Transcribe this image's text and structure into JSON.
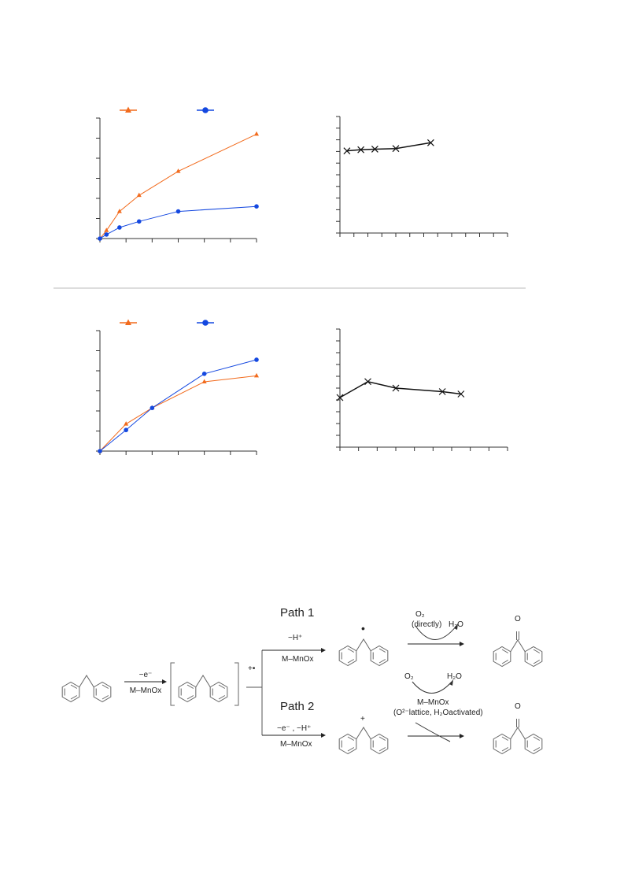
{
  "colors": {
    "orange": "#F26B1D",
    "blue": "#1448E0",
    "black": "#111111",
    "divider": "#bbbbbb"
  },
  "chart_data": [
    {
      "type": "line",
      "panel": "top-left",
      "x": [
        0,
        0.2,
        0.6,
        1.2,
        2.4,
        4.8
      ],
      "series": [
        {
          "marker": "triangle",
          "color": "#F26B1D",
          "values": [
            0,
            4,
            13.5,
            21.5,
            33.5,
            52
          ]
        },
        {
          "marker": "circle",
          "color": "#1448E0",
          "values": [
            0,
            2,
            5.5,
            8.5,
            13.5,
            16
          ]
        }
      ],
      "xlim": [
        0,
        4.8
      ],
      "ylim": [
        0,
        60
      ],
      "legend": "top-left"
    },
    {
      "type": "line",
      "panel": "top-right",
      "x": [
        0.5,
        1.5,
        2.5,
        4,
        6.5
      ],
      "series": [
        {
          "marker": "x",
          "color": "#111111",
          "values": [
            7.05,
            7.15,
            7.2,
            7.25,
            7.75
          ]
        }
      ],
      "xlim": [
        0,
        12
      ],
      "ylim": [
        0,
        10
      ]
    },
    {
      "type": "line",
      "panel": "bottom-left",
      "x": [
        0,
        1,
        2,
        4,
        6
      ],
      "series": [
        {
          "marker": "triangle",
          "color": "#F26B1D",
          "values": [
            0,
            13.5,
            21.5,
            34.5,
            37.5
          ]
        },
        {
          "marker": "circle",
          "color": "#1448E0",
          "values": [
            0,
            10.5,
            21.5,
            38.5,
            45.5
          ]
        }
      ],
      "xlim": [
        0,
        6
      ],
      "ylim": [
        0,
        60
      ],
      "legend": "top-left"
    },
    {
      "type": "line",
      "panel": "bottom-right",
      "x": [
        0,
        1.5,
        3,
        5.5,
        6.5
      ],
      "series": [
        {
          "marker": "x",
          "color": "#111111",
          "values": [
            4.2,
            5.55,
            5.0,
            4.7,
            4.5
          ]
        }
      ],
      "xlim": [
        0,
        9
      ],
      "ylim": [
        0,
        10
      ]
    }
  ],
  "scheme": {
    "path1_label": "Path 1",
    "path2_label": "Path 2",
    "step1_top": "−e⁻",
    "step1_bottom": "M–MnOx",
    "radical_cation_mark": "+•",
    "path1_top": "−H⁺",
    "path1_bottom": "M–MnOx",
    "path1_o2": "O₂",
    "path1_directly": "(directly)",
    "path1_h2o": "H₂O",
    "path2_top": "−e⁻ , −H⁺",
    "path2_bottom": "M–MnOx",
    "path2_o2": "O₂",
    "path2_h2o": "H₂O",
    "path2_catalyst": "M–MnOx",
    "path2_oxygen": "(O²⁻lattice, H₂Oactivated)",
    "radical_mark": "•",
    "cation_mark": "+",
    "ketone_o": "O"
  }
}
